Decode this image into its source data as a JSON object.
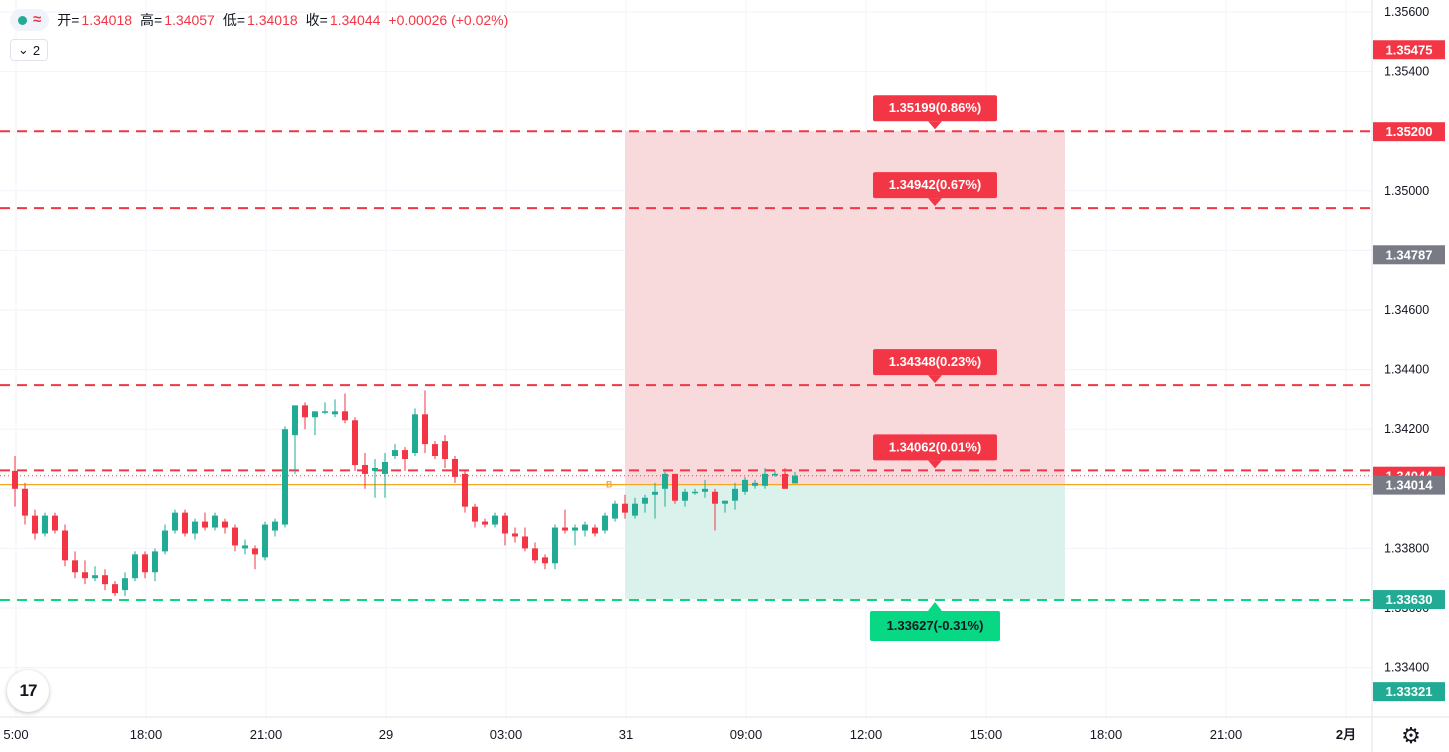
{
  "legend": {
    "open_label": "开=",
    "open": "1.34018",
    "high_label": "高=",
    "high": "1.34057",
    "low_label": "低=",
    "low": "1.34018",
    "close_label": "收=",
    "close": "1.34044",
    "change": "+0.00026 (+0.02%)",
    "indicator_count": "2"
  },
  "colors": {
    "up": "#22ab94",
    "down": "#f23645",
    "red_line": "#f23645",
    "green_line": "#08d884",
    "target_zone": "#f8d3d6",
    "stop_zone": "#d7f1ea",
    "grid": "#f0f3fa",
    "orange_line": "#f5a623"
  },
  "icons": {
    "logo": "tradingview-logo-icon",
    "settings": "gear-icon",
    "status": "status-dot-icon",
    "wave": "wave-icon",
    "collapse": "chevron-down-icon"
  },
  "chart_data": {
    "type": "candlestick",
    "ylim": [
      1.3322,
      1.3562
    ],
    "y_ticks": [
      "1.33400",
      "1.33600",
      "1.33800",
      "1.34000",
      "1.34200",
      "1.34400",
      "1.34600",
      "1.34800",
      "1.35000",
      "1.35200",
      "1.35400",
      "1.35600"
    ],
    "x_ticks": [
      {
        "label": "5:00",
        "bar": 0
      },
      {
        "label": "18:00",
        "bar": 13
      },
      {
        "label": "21:00",
        "bar": 25
      },
      {
        "label": "29",
        "bar": 37
      },
      {
        "label": "03:00",
        "bar": 49
      },
      {
        "label": "31",
        "bar": 61
      },
      {
        "label": "09:00",
        "bar": 73
      },
      {
        "label": "12:00",
        "bar": 85
      },
      {
        "label": "15:00",
        "bar": 97
      },
      {
        "label": "18:00",
        "bar": 109
      },
      {
        "label": "21:00",
        "bar": 121
      },
      {
        "label": "2月",
        "bar": 133
      }
    ],
    "candles": [
      {
        "o": 1.3406,
        "h": 1.3411,
        "l": 1.3394,
        "c": 1.34
      },
      {
        "o": 1.34,
        "h": 1.3402,
        "l": 1.3388,
        "c": 1.3391
      },
      {
        "o": 1.3391,
        "h": 1.3393,
        "l": 1.3383,
        "c": 1.3385
      },
      {
        "o": 1.3385,
        "h": 1.3392,
        "l": 1.3384,
        "c": 1.3391
      },
      {
        "o": 1.3391,
        "h": 1.3392,
        "l": 1.3385,
        "c": 1.3386
      },
      {
        "o": 1.3386,
        "h": 1.3388,
        "l": 1.3374,
        "c": 1.3376
      },
      {
        "o": 1.3376,
        "h": 1.3379,
        "l": 1.337,
        "c": 1.3372
      },
      {
        "o": 1.3372,
        "h": 1.3376,
        "l": 1.3368,
        "c": 1.337
      },
      {
        "o": 1.337,
        "h": 1.3374,
        "l": 1.3369,
        "c": 1.3371
      },
      {
        "o": 1.3371,
        "h": 1.3373,
        "l": 1.3366,
        "c": 1.3368
      },
      {
        "o": 1.3368,
        "h": 1.3369,
        "l": 1.3364,
        "c": 1.3365
      },
      {
        "o": 1.3366,
        "h": 1.3372,
        "l": 1.3364,
        "c": 1.337
      },
      {
        "o": 1.337,
        "h": 1.3379,
        "l": 1.3369,
        "c": 1.3378
      },
      {
        "o": 1.3378,
        "h": 1.3379,
        "l": 1.337,
        "c": 1.3372
      },
      {
        "o": 1.3372,
        "h": 1.338,
        "l": 1.3369,
        "c": 1.3379
      },
      {
        "o": 1.3379,
        "h": 1.3388,
        "l": 1.3378,
        "c": 1.3386
      },
      {
        "o": 1.3386,
        "h": 1.3393,
        "l": 1.3385,
        "c": 1.3392
      },
      {
        "o": 1.3392,
        "h": 1.3393,
        "l": 1.3384,
        "c": 1.3385
      },
      {
        "o": 1.3385,
        "h": 1.339,
        "l": 1.3383,
        "c": 1.3389
      },
      {
        "o": 1.3389,
        "h": 1.3392,
        "l": 1.3386,
        "c": 1.3387
      },
      {
        "o": 1.3387,
        "h": 1.3392,
        "l": 1.3386,
        "c": 1.3391
      },
      {
        "o": 1.3389,
        "h": 1.339,
        "l": 1.3385,
        "c": 1.3387
      },
      {
        "o": 1.3387,
        "h": 1.3388,
        "l": 1.3379,
        "c": 1.3381
      },
      {
        "o": 1.338,
        "h": 1.3383,
        "l": 1.3378,
        "c": 1.3381
      },
      {
        "o": 1.338,
        "h": 1.3381,
        "l": 1.3373,
        "c": 1.3378
      },
      {
        "o": 1.3377,
        "h": 1.3389,
        "l": 1.3376,
        "c": 1.3388
      },
      {
        "o": 1.3386,
        "h": 1.339,
        "l": 1.3384,
        "c": 1.3389
      },
      {
        "o": 1.3388,
        "h": 1.3421,
        "l": 1.3387,
        "c": 1.342
      },
      {
        "o": 1.3418,
        "h": 1.3428,
        "l": 1.3405,
        "c": 1.3428
      },
      {
        "o": 1.3428,
        "h": 1.3429,
        "l": 1.342,
        "c": 1.3424
      },
      {
        "o": 1.3424,
        "h": 1.3426,
        "l": 1.3418,
        "c": 1.3426
      },
      {
        "o": 1.3426,
        "h": 1.3429,
        "l": 1.3425,
        "c": 1.3426
      },
      {
        "o": 1.3425,
        "h": 1.343,
        "l": 1.3424,
        "c": 1.3426
      },
      {
        "o": 1.3426,
        "h": 1.3432,
        "l": 1.3422,
        "c": 1.3423
      },
      {
        "o": 1.3423,
        "h": 1.3424,
        "l": 1.3406,
        "c": 1.3408
      },
      {
        "o": 1.3408,
        "h": 1.3412,
        "l": 1.34,
        "c": 1.3405
      },
      {
        "o": 1.3406,
        "h": 1.341,
        "l": 1.3397,
        "c": 1.3407
      },
      {
        "o": 1.3405,
        "h": 1.3412,
        "l": 1.3397,
        "c": 1.3409
      },
      {
        "o": 1.3411,
        "h": 1.3415,
        "l": 1.341,
        "c": 1.3413
      },
      {
        "o": 1.3413,
        "h": 1.3414,
        "l": 1.3406,
        "c": 1.341
      },
      {
        "o": 1.3412,
        "h": 1.3427,
        "l": 1.3411,
        "c": 1.3425
      },
      {
        "o": 1.3425,
        "h": 1.3433,
        "l": 1.3412,
        "c": 1.3415
      },
      {
        "o": 1.3415,
        "h": 1.3416,
        "l": 1.341,
        "c": 1.3411
      },
      {
        "o": 1.3416,
        "h": 1.3418,
        "l": 1.3407,
        "c": 1.341
      },
      {
        "o": 1.341,
        "h": 1.3411,
        "l": 1.3402,
        "c": 1.3404
      },
      {
        "o": 1.3405,
        "h": 1.3406,
        "l": 1.3392,
        "c": 1.3394
      },
      {
        "o": 1.3394,
        "h": 1.3395,
        "l": 1.3387,
        "c": 1.3389
      },
      {
        "o": 1.3389,
        "h": 1.339,
        "l": 1.3387,
        "c": 1.3388
      },
      {
        "o": 1.3388,
        "h": 1.3392,
        "l": 1.3387,
        "c": 1.3391
      },
      {
        "o": 1.3391,
        "h": 1.3392,
        "l": 1.3381,
        "c": 1.3385
      },
      {
        "o": 1.3385,
        "h": 1.3387,
        "l": 1.3382,
        "c": 1.3384
      },
      {
        "o": 1.3384,
        "h": 1.3387,
        "l": 1.3379,
        "c": 1.338
      },
      {
        "o": 1.338,
        "h": 1.3382,
        "l": 1.3375,
        "c": 1.3376
      },
      {
        "o": 1.3377,
        "h": 1.3378,
        "l": 1.3373,
        "c": 1.3375
      },
      {
        "o": 1.3375,
        "h": 1.3388,
        "l": 1.3373,
        "c": 1.3387
      },
      {
        "o": 1.3387,
        "h": 1.3393,
        "l": 1.3385,
        "c": 1.3386
      },
      {
        "o": 1.3386,
        "h": 1.3388,
        "l": 1.3381,
        "c": 1.3387
      },
      {
        "o": 1.3386,
        "h": 1.3389,
        "l": 1.3384,
        "c": 1.3388
      },
      {
        "o": 1.3387,
        "h": 1.3388,
        "l": 1.3384,
        "c": 1.3385
      },
      {
        "o": 1.3386,
        "h": 1.3392,
        "l": 1.3385,
        "c": 1.3391
      },
      {
        "o": 1.339,
        "h": 1.3396,
        "l": 1.3389,
        "c": 1.3395
      },
      {
        "o": 1.3395,
        "h": 1.3398,
        "l": 1.339,
        "c": 1.3392
      },
      {
        "o": 1.3391,
        "h": 1.3397,
        "l": 1.339,
        "c": 1.3395
      },
      {
        "o": 1.3395,
        "h": 1.3398,
        "l": 1.3392,
        "c": 1.3397
      },
      {
        "o": 1.3398,
        "h": 1.3402,
        "l": 1.339,
        "c": 1.3399
      },
      {
        "o": 1.34,
        "h": 1.3406,
        "l": 1.3394,
        "c": 1.3405
      },
      {
        "o": 1.3405,
        "h": 1.3405,
        "l": 1.3395,
        "c": 1.3396
      },
      {
        "o": 1.3396,
        "h": 1.34,
        "l": 1.3394,
        "c": 1.3399
      },
      {
        "o": 1.3399,
        "h": 1.34,
        "l": 1.3398,
        "c": 1.3399
      },
      {
        "o": 1.3399,
        "h": 1.3403,
        "l": 1.3397,
        "c": 1.34
      },
      {
        "o": 1.3399,
        "h": 1.34,
        "l": 1.3386,
        "c": 1.3395
      },
      {
        "o": 1.3395,
        "h": 1.3396,
        "l": 1.3392,
        "c": 1.3396
      },
      {
        "o": 1.3396,
        "h": 1.3402,
        "l": 1.3393,
        "c": 1.34
      },
      {
        "o": 1.3399,
        "h": 1.3404,
        "l": 1.3398,
        "c": 1.3403
      },
      {
        "o": 1.3401,
        "h": 1.3403,
        "l": 1.34,
        "c": 1.3402
      },
      {
        "o": 1.3401,
        "h": 1.3407,
        "l": 1.34,
        "c": 1.3405
      },
      {
        "o": 1.3405,
        "h": 1.3406,
        "l": 1.3404,
        "c": 1.3405
      },
      {
        "o": 1.3405,
        "h": 1.3407,
        "l": 1.34,
        "c": 1.34
      },
      {
        "o": 1.34018,
        "h": 1.34057,
        "l": 1.34018,
        "c": 1.34044
      }
    ],
    "horizontal_lines": [
      {
        "value": 1.352,
        "color": "red"
      },
      {
        "value": 1.34942,
        "color": "red"
      },
      {
        "value": 1.34348,
        "color": "red"
      },
      {
        "value": 1.34062,
        "color": "red"
      },
      {
        "value": 1.33627,
        "color": "green"
      }
    ],
    "orange_line_value": 1.34014,
    "position_zone": {
      "entry": 1.34014,
      "target": 1.352,
      "stop": 1.3363,
      "start_bar": 61,
      "end_bar": 105,
      "entry_mark": "B"
    },
    "line_labels": [
      {
        "text": "1.35199(0.86%)",
        "value": 1.352,
        "side": "above",
        "color": "red"
      },
      {
        "text": "1.34942(0.67%)",
        "value": 1.34942,
        "side": "above",
        "color": "red"
      },
      {
        "text": "1.34348(0.23%)",
        "value": 1.34348,
        "side": "above",
        "color": "red"
      },
      {
        "text": "1.34062(0.01%)",
        "value": 1.34062,
        "side": "above",
        "color": "red"
      },
      {
        "text": "1.33627(-0.31%)",
        "value": 1.33627,
        "side": "below",
        "color": "green"
      }
    ],
    "price_tags": [
      {
        "text": "1.35475",
        "value": 1.35475,
        "color": "#f23645"
      },
      {
        "text": "1.35200",
        "value": 1.352,
        "color": "#f23645"
      },
      {
        "text": "1.34787",
        "value": 1.34787,
        "color": "#787b86"
      },
      {
        "text": "1.34044",
        "value": 1.34044,
        "color": "#f23645"
      },
      {
        "text": "1.34014",
        "value": 1.34014,
        "color": "#787b86"
      },
      {
        "text": "1.33630",
        "value": 1.3363,
        "color": "#22ab94"
      },
      {
        "text": "1.33321",
        "value": 1.33321,
        "color": "#22ab94"
      }
    ]
  }
}
